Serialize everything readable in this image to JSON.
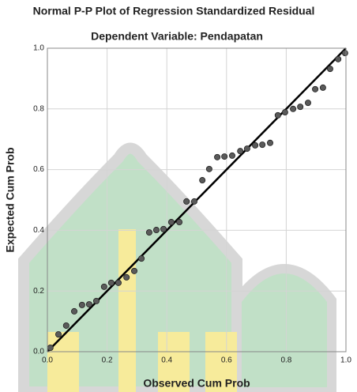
{
  "chart_data": {
    "type": "scatter",
    "title": "Normal P-P Plot of Regression Standardized Residual",
    "subtitle": "Dependent Variable: Pendapatan",
    "x_label": "Observed Cum Prob",
    "y_label": "Expected Cum Prob",
    "x": [
      0.01,
      0.037,
      0.063,
      0.09,
      0.116,
      0.14,
      0.164,
      0.19,
      0.214,
      0.238,
      0.265,
      0.291,
      0.315,
      0.341,
      0.365,
      0.389,
      0.415,
      0.442,
      0.466,
      0.492,
      0.519,
      0.542,
      0.569,
      0.593,
      0.619,
      0.646,
      0.669,
      0.696,
      0.72,
      0.746,
      0.772,
      0.796,
      0.823,
      0.847,
      0.873,
      0.897,
      0.923,
      0.947,
      0.974,
      0.997
    ],
    "values": [
      0.013,
      0.057,
      0.086,
      0.133,
      0.154,
      0.156,
      0.167,
      0.214,
      0.227,
      0.227,
      0.245,
      0.266,
      0.307,
      0.393,
      0.401,
      0.404,
      0.427,
      0.427,
      0.495,
      0.495,
      0.565,
      0.602,
      0.641,
      0.643,
      0.646,
      0.661,
      0.669,
      0.68,
      0.682,
      0.688,
      0.779,
      0.789,
      0.8,
      0.807,
      0.82,
      0.865,
      0.87,
      0.932,
      0.964,
      0.984
    ],
    "color": "#5a5a5a",
    "xlim": [
      0,
      1
    ],
    "ylim": [
      0,
      1
    ],
    "xticks": [
      {
        "value": 0,
        "label": "0.0"
      },
      0.2,
      0.4,
      0.6,
      0.8,
      {
        "value": 1,
        "label": "1.0"
      }
    ],
    "yticks": [
      {
        "value": 0,
        "label": "0.0"
      },
      0.2,
      0.4,
      0.6,
      0.8,
      {
        "value": 1,
        "label": "1.0"
      }
    ],
    "grid": true
  }
}
